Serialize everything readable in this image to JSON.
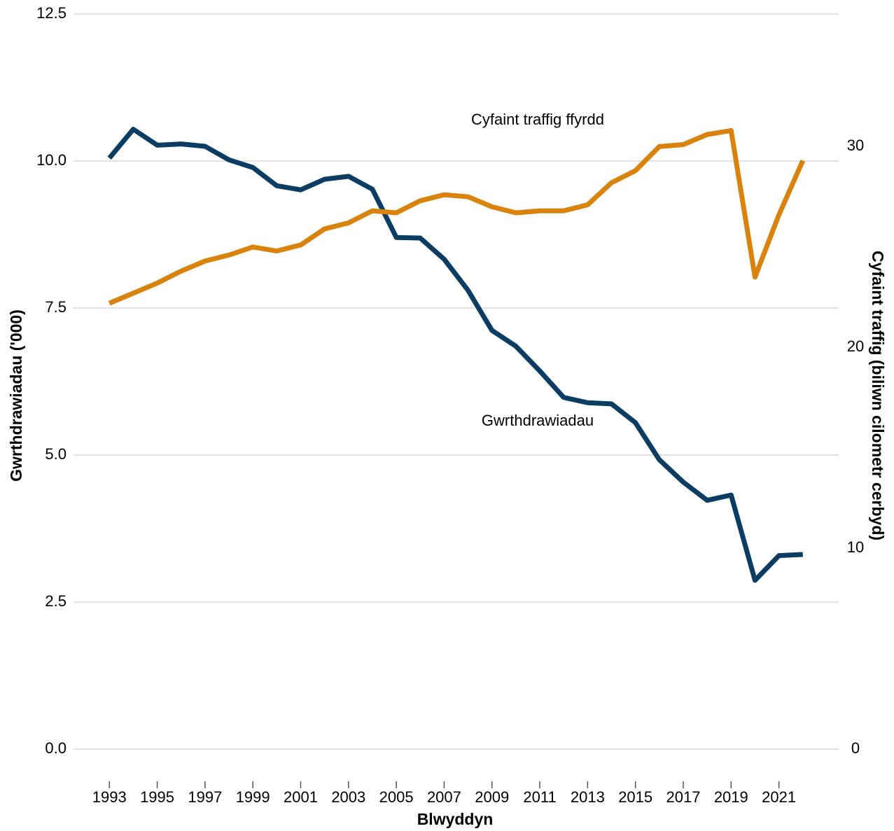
{
  "chart_data": {
    "type": "line",
    "x": [
      1993,
      1994,
      1995,
      1996,
      1997,
      1998,
      1999,
      2000,
      2001,
      2002,
      2003,
      2004,
      2005,
      2006,
      2007,
      2008,
      2009,
      2010,
      2011,
      2012,
      2013,
      2014,
      2015,
      2016,
      2017,
      2018,
      2019,
      2020,
      2021,
      2022
    ],
    "series": [
      {
        "name": "Gwrthdrawiadau",
        "color": "#0b3c63",
        "values": [
          10.05,
          10.54,
          10.27,
          10.29,
          10.25,
          10.02,
          9.89,
          9.58,
          9.51,
          9.69,
          9.74,
          9.52,
          8.7,
          8.69,
          8.33,
          7.8,
          7.12,
          6.85,
          6.43,
          5.98,
          5.89,
          5.87,
          5.55,
          4.92,
          4.54,
          4.23,
          4.32,
          2.87,
          3.29,
          3.31
        ]
      },
      {
        "name": "Cyfaint traffig ffyrdd",
        "color": "#d9820c",
        "axis": "y2",
        "values": [
          22.2,
          22.7,
          23.2,
          23.8,
          24.3,
          24.6,
          25.0,
          24.8,
          25.1,
          25.9,
          26.2,
          26.8,
          26.7,
          27.3,
          27.6,
          27.5,
          27.0,
          26.7,
          26.8,
          26.8,
          27.1,
          28.2,
          28.8,
          30.0,
          30.1,
          30.6,
          30.8,
          23.5,
          26.6,
          29.3
        ]
      }
    ],
    "xlabel": "Blwyddyn",
    "ylabel": "Gwrthdrawiadau ('000)",
    "y2label": "Cyfaint traffig (biliwn cilometr cerbyd)",
    "xlim": [
      1991.5,
      2023.5
    ],
    "xticks": [
      1993,
      1995,
      1997,
      1999,
      2001,
      2003,
      2005,
      2007,
      2009,
      2011,
      2013,
      2015,
      2017,
      2019,
      2021
    ],
    "ylim": [
      0,
      12.5
    ],
    "yticks": [
      {
        "value": 0,
        "label": "0.0"
      },
      2.5,
      {
        "value": 5,
        "label": "5.0"
      },
      7.5,
      {
        "value": 10,
        "label": "10.0"
      },
      12.5
    ],
    "y2lim": [
      0,
      36.6
    ],
    "y2ticks": [
      0,
      10,
      20,
      30
    ],
    "grid": true
  }
}
